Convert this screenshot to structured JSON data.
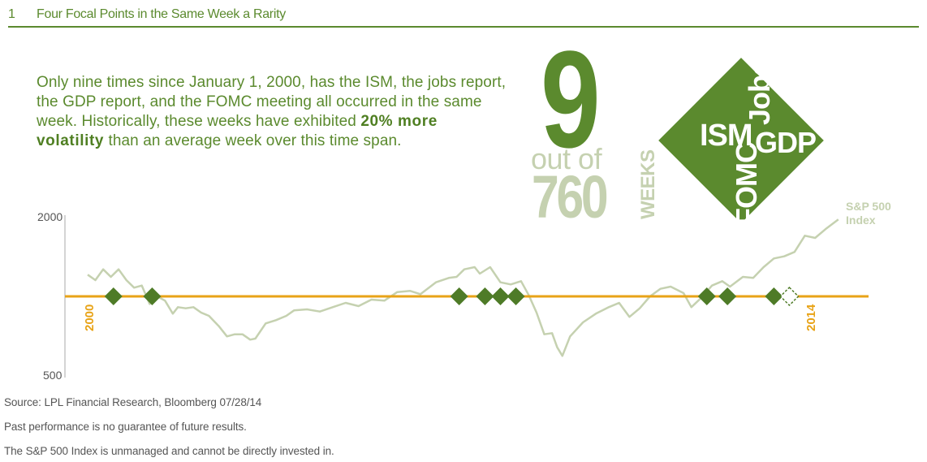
{
  "figure": {
    "number": "1",
    "title": "Four Focal Points in the Same Week a Rarity"
  },
  "headline": {
    "text_before": "Only nine times since January 1, 2000, has the ISM, the jobs report, the GDP report, and the FOMC meeting all occurred in the same week. Historically, these weeks have exhibited ",
    "highlight": "20% more volatility",
    "text_after": " than an average week over this time span."
  },
  "callout": {
    "big_number": "9",
    "out_of": "out of",
    "count": "760",
    "weeks": "WEEKS"
  },
  "diamond": {
    "labels": [
      "ISM",
      "GDP",
      "Jobs",
      "FOMC"
    ]
  },
  "colors": {
    "brand_green": "#5b8a2e",
    "light_green": "#c5d1b0",
    "line_green": "#c5d1b0",
    "orange": "#e8a317",
    "diamond_green": "#4e7b27"
  },
  "chart_data": {
    "type": "line",
    "series": [
      {
        "name": "S&P 500 Index",
        "x": [
          2000.0,
          2000.15,
          2000.3,
          2000.45,
          2000.6,
          2000.75,
          2000.9,
          2001.05,
          2001.2,
          2001.35,
          2001.5,
          2001.65,
          2001.75,
          2001.9,
          2002.05,
          2002.2,
          2002.35,
          2002.55,
          2002.7,
          2002.85,
          2003.0,
          2003.15,
          2003.25,
          2003.45,
          2003.65,
          2003.85,
          2004.0,
          2004.25,
          2004.5,
          2004.75,
          2005.0,
          2005.25,
          2005.5,
          2005.75,
          2006.0,
          2006.25,
          2006.45,
          2006.75,
          2007.0,
          2007.15,
          2007.3,
          2007.5,
          2007.6,
          2007.8,
          2008.0,
          2008.2,
          2008.4,
          2008.55,
          2008.7,
          2008.85,
          2009.0,
          2009.1,
          2009.2,
          2009.35,
          2009.6,
          2009.85,
          2010.1,
          2010.3,
          2010.5,
          2010.7,
          2010.9,
          2011.1,
          2011.3,
          2011.55,
          2011.7,
          2011.9,
          2012.1,
          2012.3,
          2012.45,
          2012.7,
          2012.9,
          2013.1,
          2013.3,
          2013.5,
          2013.7,
          2013.9,
          2014.1,
          2014.3,
          2014.55
        ],
        "y": [
          1450,
          1400,
          1500,
          1430,
          1500,
          1400,
          1330,
          1350,
          1180,
          1250,
          1210,
          1090,
          1150,
          1140,
          1150,
          1100,
          1070,
          970,
          880,
          900,
          900,
          850,
          860,
          1000,
          1030,
          1070,
          1120,
          1130,
          1110,
          1150,
          1190,
          1160,
          1220,
          1210,
          1290,
          1300,
          1270,
          1380,
          1420,
          1430,
          1500,
          1520,
          1460,
          1520,
          1380,
          1360,
          1390,
          1260,
          1100,
          900,
          910,
          780,
          700,
          880,
          1010,
          1090,
          1150,
          1190,
          1060,
          1140,
          1250,
          1320,
          1340,
          1280,
          1150,
          1240,
          1350,
          1390,
          1340,
          1430,
          1420,
          1520,
          1600,
          1620,
          1660,
          1810,
          1790,
          1870,
          1960
        ]
      }
    ],
    "series_label": [
      "S&P 500",
      "Index"
    ],
    "y_ticks": [
      "2000",
      "500"
    ],
    "ylim": [
      500,
      2000
    ],
    "xlim": [
      2000,
      2014.6
    ],
    "x_axis_labels": [
      "2000",
      "2014"
    ],
    "focal_weeks": [
      2000.5,
      2001.25,
      2007.2,
      2007.7,
      2008.0,
      2008.3,
      2012.0,
      2012.4,
      2013.3
    ],
    "upcoming_week": 2013.6,
    "legend": "none",
    "grid": false
  },
  "source": {
    "line1": "Source: LPL Financial Research, Bloomberg  07/28/14",
    "line2": "Past performance is no guarantee of future results.",
    "line3": "The S&P 500 Index is unmanaged and cannot be directly invested in."
  }
}
